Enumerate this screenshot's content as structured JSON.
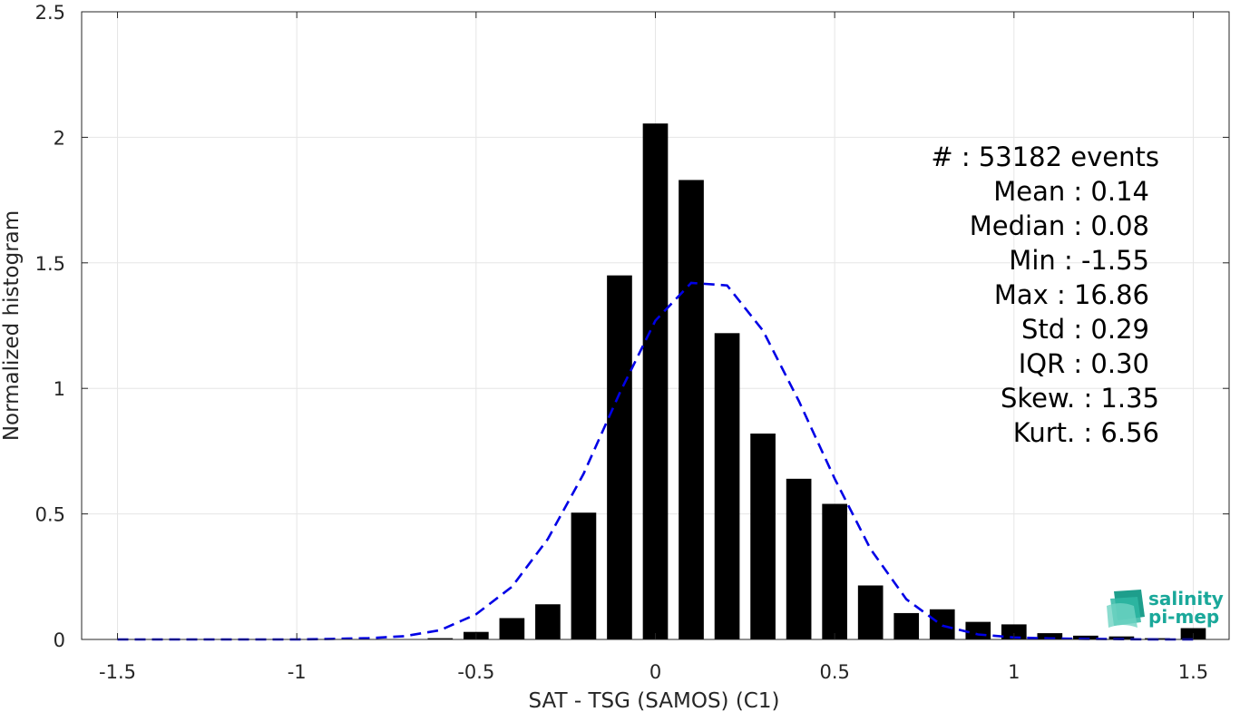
{
  "chart_data": {
    "type": "bar",
    "xlabel": "SAT - TSG (SAMOS) (C1)",
    "ylabel": "Normalized histogram",
    "xlim": [
      -1.6,
      1.6
    ],
    "ylim": [
      0,
      2.5
    ],
    "xticks": [
      "-1.5",
      "-1",
      "-0.5",
      "0",
      "0.5",
      "1",
      "1.5"
    ],
    "xtick_values": [
      -1.5,
      -1,
      -0.5,
      0,
      0.5,
      1,
      1.5
    ],
    "yticks": [
      "0",
      "0.5",
      "1",
      "1.5",
      "2",
      "2.5"
    ],
    "ytick_values": [
      0,
      0.5,
      1,
      1.5,
      2,
      2.5
    ],
    "grid": true,
    "bar_color": "#000000",
    "bar_width": 0.07,
    "bars": {
      "x": [
        -0.6,
        -0.5,
        -0.4,
        -0.3,
        -0.2,
        -0.1,
        0.0,
        0.1,
        0.2,
        0.3,
        0.4,
        0.5,
        0.6,
        0.7,
        0.8,
        0.9,
        1.0,
        1.1,
        1.2,
        1.3,
        1.4,
        1.5
      ],
      "values": [
        0.005,
        0.03,
        0.085,
        0.14,
        0.505,
        1.45,
        2.055,
        1.83,
        1.22,
        0.82,
        0.64,
        0.54,
        0.215,
        0.105,
        0.12,
        0.07,
        0.06,
        0.025,
        0.015,
        0.012,
        0.005,
        0.045
      ]
    },
    "fit_curve": {
      "style": "dashed",
      "color": "#0000e6",
      "x": [
        -1.5,
        -1.4,
        -1.3,
        -1.2,
        -1.1,
        -1.0,
        -0.9,
        -0.8,
        -0.7,
        -0.6,
        -0.5,
        -0.4,
        -0.3,
        -0.2,
        -0.1,
        0.0,
        0.1,
        0.2,
        0.3,
        0.4,
        0.5,
        0.6,
        0.7,
        0.8,
        0.9,
        1.0,
        1.1,
        1.2,
        1.3,
        1.4,
        1.5
      ],
      "y": [
        0,
        0,
        0,
        0,
        0,
        0,
        0.002,
        0.005,
        0.013,
        0.037,
        0.1,
        0.21,
        0.4,
        0.66,
        0.98,
        1.27,
        1.42,
        1.41,
        1.23,
        0.95,
        0.64,
        0.36,
        0.16,
        0.055,
        0.02,
        0.008,
        0.004,
        0.002,
        0.001,
        0,
        0
      ]
    },
    "stats": [
      {
        "label": "#  :",
        "value": "53182 events"
      },
      {
        "label": "Mean :",
        "value": "0.14"
      },
      {
        "label": "Median :",
        "value": "0.08"
      },
      {
        "label": "Min :",
        "value": "-1.55"
      },
      {
        "label": "Max :",
        "value": "16.86"
      },
      {
        "label": "Std :",
        "value": "0.29"
      },
      {
        "label": "IQR :",
        "value": "0.30"
      },
      {
        "label": "Skew. :",
        "value": "1.35"
      },
      {
        "label": "Kurt. :",
        "value": "6.56"
      }
    ],
    "stats_lines": [
      "#  : 53182 events",
      "Mean : 0.14",
      "Median : 0.08",
      "Min : -1.55",
      "Max : 16.86",
      "Std : 0.29",
      "IQR : 0.30",
      "Skew. : 1.35",
      "Kurt. : 6.56"
    ]
  },
  "logo": {
    "line1": "salinity",
    "line2": "pi-mep",
    "color": "#1aa89a"
  }
}
